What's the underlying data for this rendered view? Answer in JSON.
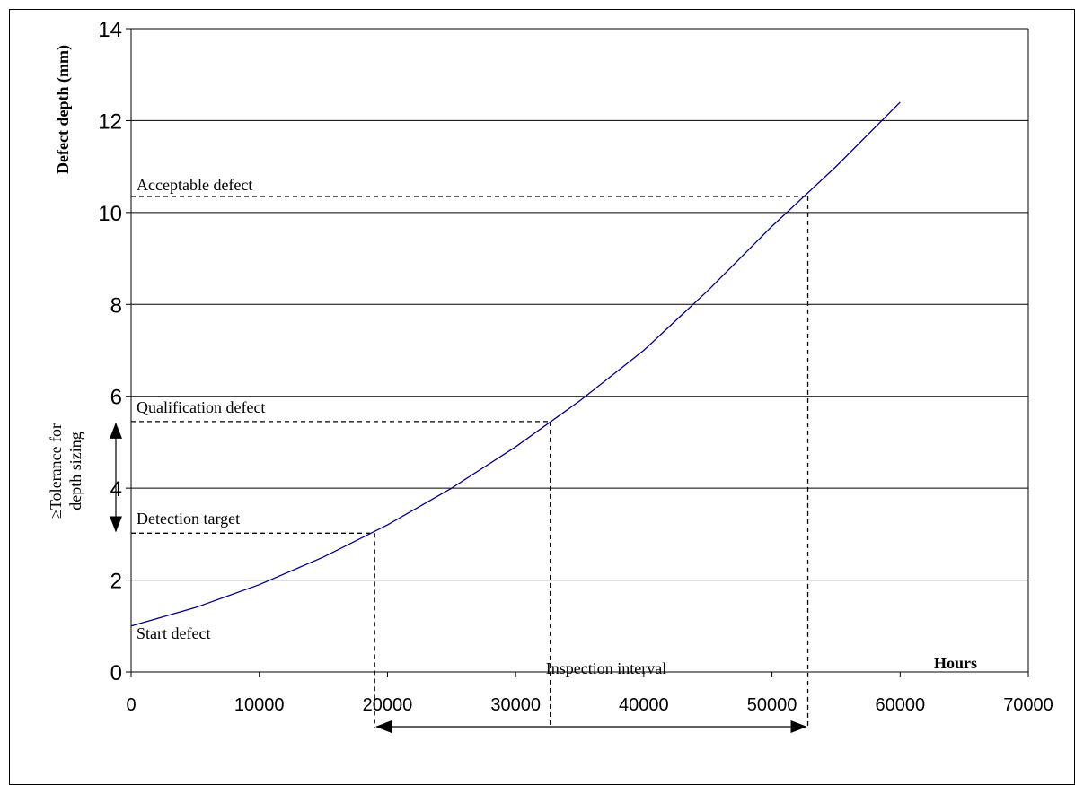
{
  "chart_data": {
    "type": "line",
    "title": "",
    "xlabel": "Hours",
    "ylabel": "Defect depth (mm)",
    "xlim": [
      0,
      70000
    ],
    "ylim": [
      0,
      14
    ],
    "x_ticks": [
      "0",
      "10000",
      "20000",
      "30000",
      "40000",
      "50000",
      "60000",
      "70000"
    ],
    "y_ticks": [
      "0",
      "2",
      "4",
      "6",
      "8",
      "10",
      "12",
      "14"
    ],
    "grid": "horizontal",
    "series": [
      {
        "color": "#00007f",
        "x": [
          0,
          5000,
          10000,
          15000,
          20000,
          25000,
          30000,
          35000,
          40000,
          45000,
          50000,
          55000,
          60000
        ],
        "y": [
          1.0,
          1.4,
          1.9,
          2.5,
          3.2,
          4.0,
          4.9,
          5.9,
          7.0,
          8.3,
          9.7,
          11.0,
          12.4
        ]
      }
    ],
    "annotations": {
      "acceptable": {
        "label": "Acceptable defect",
        "x": 52800,
        "y": 10.35
      },
      "qualification": {
        "label": "Qualification defect",
        "x": 32700,
        "y": 5.45
      },
      "detection": {
        "label": "Detection target",
        "x": 19000,
        "y": 3.02
      },
      "start": {
        "label": "Start defect"
      },
      "tolerance": {
        "label_line1": "≥Tolerance for",
        "label_line2": "depth sizing"
      },
      "interval": {
        "label": "Inspection interval"
      }
    }
  }
}
